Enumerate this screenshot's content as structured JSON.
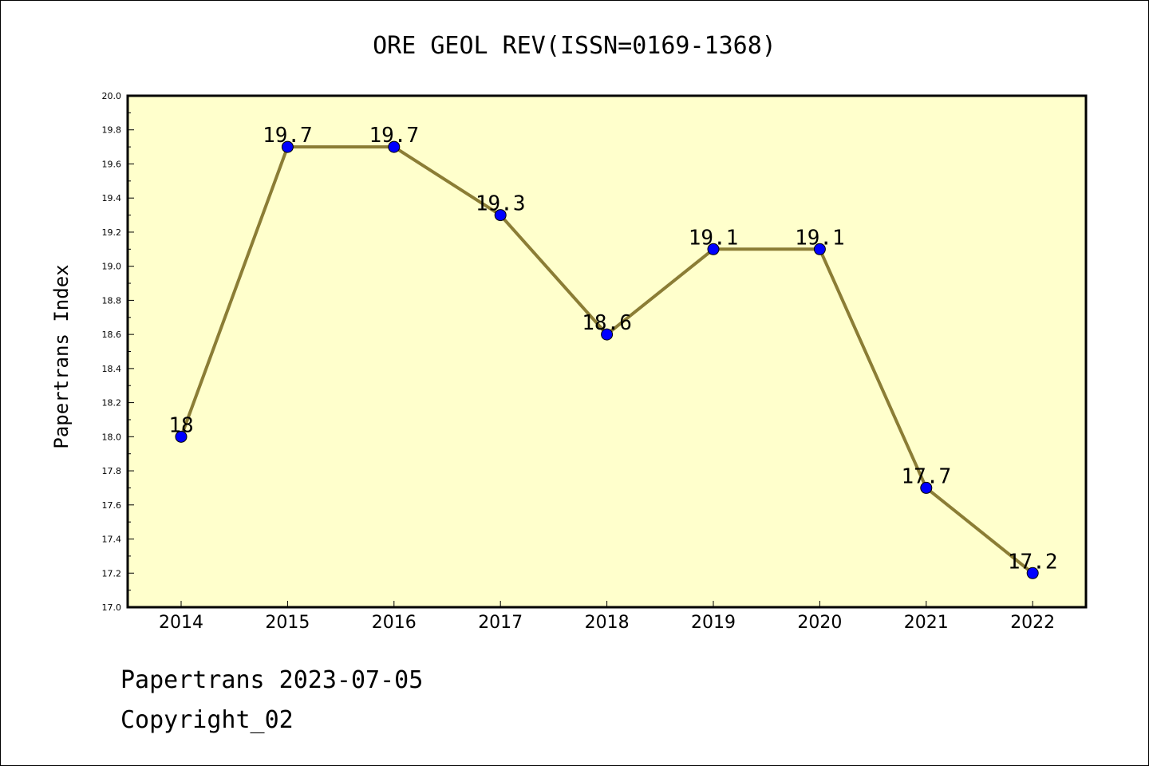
{
  "chart_data": {
    "type": "line",
    "title": "ORE GEOL REV(ISSN=0169-1368)",
    "xlabel": "",
    "ylabel": "Papertrans Index",
    "categories": [
      "2014",
      "2015",
      "2016",
      "2017",
      "2018",
      "2019",
      "2020",
      "2021",
      "2022"
    ],
    "values": [
      18,
      19.7,
      19.7,
      19.3,
      18.6,
      19.1,
      19.1,
      17.7,
      17.2
    ],
    "data_labels": [
      "18",
      "19.7",
      "19.7",
      "19.3",
      "18.6",
      "19.1",
      "19.1",
      "17.7",
      "17.2"
    ],
    "ylim": [
      17.0,
      20.0
    ],
    "yticks": [
      "17.0",
      "17.2",
      "17.4",
      "17.6",
      "17.8",
      "18.0",
      "18.2",
      "18.4",
      "18.6",
      "18.8",
      "19.0",
      "19.2",
      "19.4",
      "19.6",
      "19.8",
      "20.0"
    ],
    "grid": false,
    "legend": "none",
    "colors": {
      "plot_background": "#ffffcc",
      "line": "#8b7d35",
      "marker": "#0000ff",
      "marker_edge": "#000000",
      "axis": "#000000"
    }
  },
  "footer": {
    "line1": "Papertrans 2023-07-05",
    "line2": "Copyright_02"
  }
}
